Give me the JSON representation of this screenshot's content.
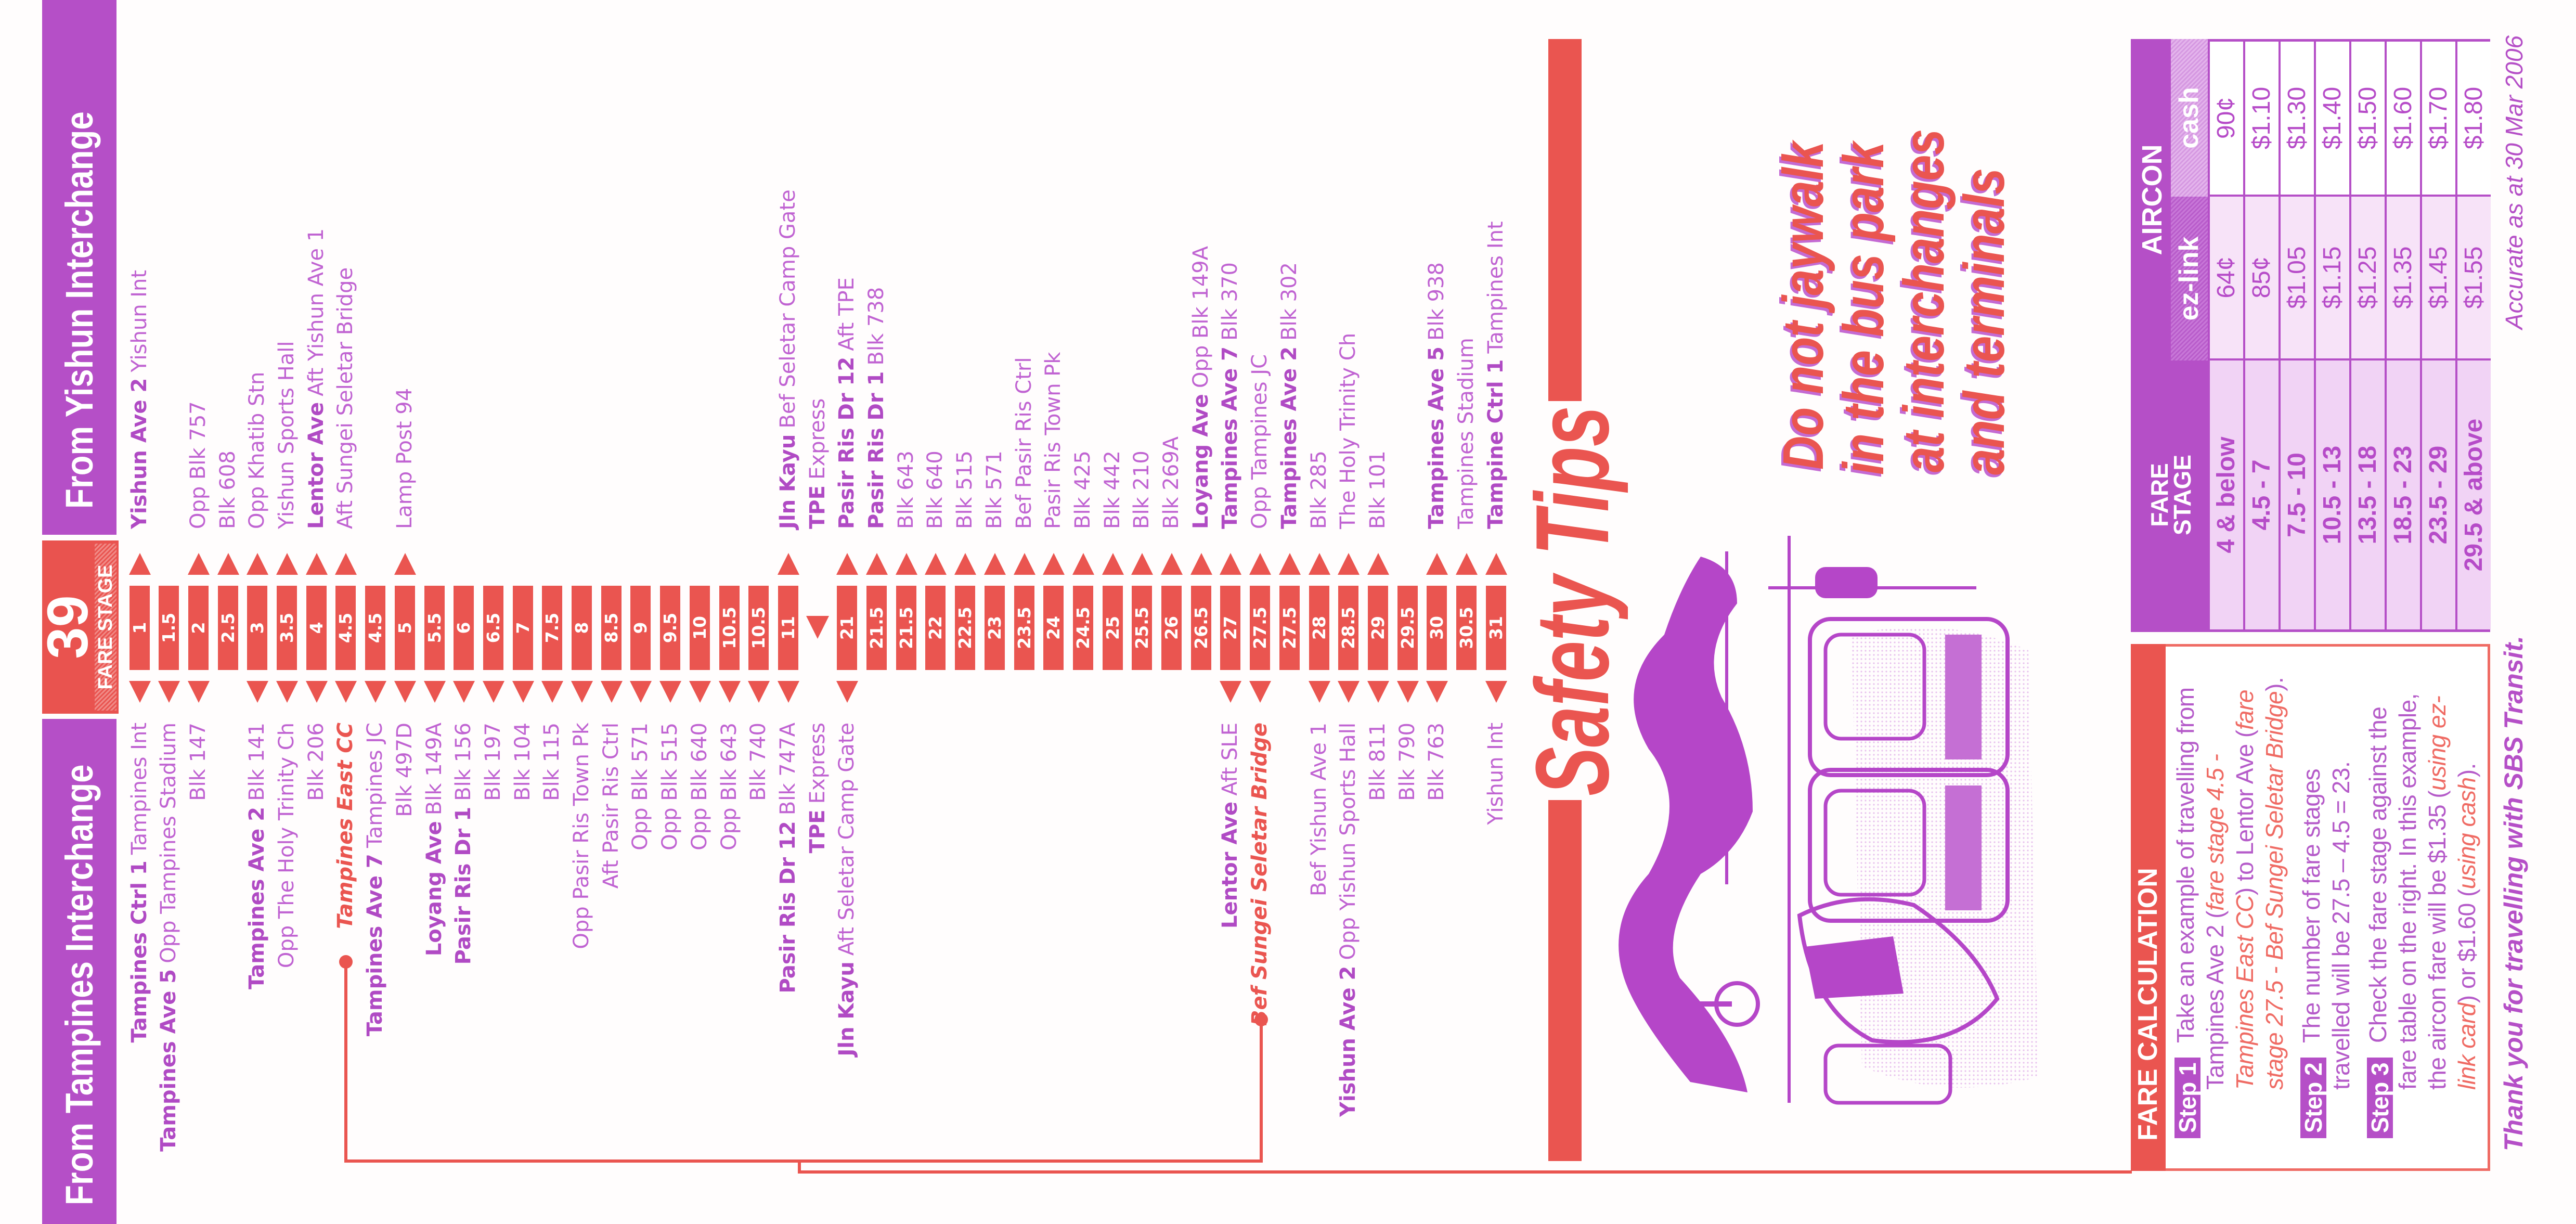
{
  "colors": {
    "red": "#ea5550",
    "purple": "#b54fc7",
    "label_purple": "#c063d2"
  },
  "header": {
    "from_tampines": "From Tampines Interchange",
    "route_number": "39",
    "fare_stage_label": "FARE STAGE",
    "from_yishun": "From Yishun Interchange"
  },
  "route": {
    "rows": [
      {
        "s": "1",
        "l": {
          "b": "Tampines Ctrl 1",
          "t": "Tampines Int"
        },
        "r": {
          "b": "Yishun Ave 2",
          "t": "Yishun Int"
        },
        "up": true,
        "dn": true
      },
      {
        "s": "1.5",
        "l": {
          "b": "Tampines Ave 5",
          "t": "Opp Tampines Stadium"
        },
        "up": false,
        "dn": true
      },
      {
        "s": "2",
        "l": {
          "t": "Blk 147"
        },
        "r": {
          "t": "Opp Blk 757"
        },
        "up": true,
        "dn": true
      },
      {
        "s": "2.5",
        "r": {
          "t": "Blk 608"
        },
        "up": true,
        "dn": false
      },
      {
        "s": "3",
        "l": {
          "b": "Tampines Ave 2",
          "t": "Blk 141"
        },
        "r": {
          "t": "Opp Khatib Stn"
        },
        "up": true,
        "dn": true
      },
      {
        "s": "3.5",
        "l": {
          "t": "Opp The Holy Trinity Ch"
        },
        "r": {
          "t": "Yishun Sports Hall"
        },
        "up": true,
        "dn": true
      },
      {
        "s": "4",
        "l": {
          "t": "Blk 206"
        },
        "r": {
          "b": "Lentor Ave",
          "t": "Aft Yishun Ave 1"
        },
        "up": true,
        "dn": true
      },
      {
        "s": "4.5",
        "l": {
          "t": "Tampines East CC",
          "hl": true
        },
        "r": {
          "t": "Aft Sungei Seletar Bridge"
        },
        "up": true,
        "dn": true
      },
      {
        "s": "4.5",
        "l": {
          "b": "Tampines Ave 7",
          "t": "Tampines JC"
        },
        "up": false,
        "dn": true
      },
      {
        "s": "5",
        "l": {
          "t": "Blk 497D"
        },
        "r": {
          "t": "Lamp Post 94"
        },
        "up": true,
        "dn": true
      },
      {
        "s": "5.5",
        "l": {
          "b": "Loyang Ave",
          "t": "Blk 149A"
        },
        "up": false,
        "dn": true
      },
      {
        "s": "6",
        "l": {
          "b": "Pasir Ris Dr 1",
          "t": "Blk 156"
        },
        "up": false,
        "dn": true
      },
      {
        "s": "6.5",
        "l": {
          "t": "Blk 197"
        },
        "up": false,
        "dn": true
      },
      {
        "s": "7",
        "l": {
          "t": "Blk 104"
        },
        "up": false,
        "dn": true
      },
      {
        "s": "7.5",
        "l": {
          "t": "Blk 115"
        },
        "up": false,
        "dn": true
      },
      {
        "s": "8",
        "l": {
          "t": "Opp Pasir Ris Town Pk"
        },
        "up": false,
        "dn": true
      },
      {
        "s": "8.5",
        "l": {
          "t": "Aft Pasir Ris Ctrl"
        },
        "up": false,
        "dn": true
      },
      {
        "s": "9",
        "l": {
          "t": "Opp Blk 571"
        },
        "up": false,
        "dn": true
      },
      {
        "s": "9.5",
        "l": {
          "t": "Opp Blk 515"
        },
        "up": false,
        "dn": true
      },
      {
        "s": "10",
        "l": {
          "t": "Opp Blk 640"
        },
        "up": false,
        "dn": true
      },
      {
        "s": "10.5",
        "l": {
          "t": "Opp Blk 643"
        },
        "up": false,
        "dn": true
      },
      {
        "s": "10.5",
        "l": {
          "t": "Blk 740"
        },
        "up": false,
        "dn": true
      },
      {
        "s": "11",
        "l": {
          "b": "Pasir Ris Dr 12",
          "t": "Blk 747A"
        },
        "r": {
          "b": "Jln Kayu",
          "t": "Bef Seletar Camp Gate"
        },
        "up": true,
        "dn": true
      },
      {
        "mid": true,
        "l": {
          "b": "TPE",
          "t": "Express"
        },
        "r": {
          "b": "TPE",
          "t": "Express"
        },
        "up": false,
        "dn": false
      },
      {
        "s": "21",
        "l": {
          "b": "Jln Kayu",
          "t": "Aft Seletar Camp Gate"
        },
        "r": {
          "b": "Pasir Ris Dr 12",
          "t": "Aft TPE"
        },
        "up": true,
        "dn": true
      },
      {
        "s": "21.5",
        "r": {
          "b": "Pasir Ris Dr 1",
          "t": "Blk 738"
        },
        "up": true,
        "dn": false
      },
      {
        "s": "21.5",
        "r": {
          "t": "Blk 643"
        },
        "up": true,
        "dn": false
      },
      {
        "s": "22",
        "r": {
          "t": "Blk 640"
        },
        "up": true,
        "dn": false
      },
      {
        "s": "22.5",
        "r": {
          "t": "Blk 515"
        },
        "up": true,
        "dn": false
      },
      {
        "s": "23",
        "r": {
          "t": "Blk 571"
        },
        "up": true,
        "dn": false
      },
      {
        "s": "23.5",
        "r": {
          "t": "Bef Pasir Ris Ctrl"
        },
        "up": true,
        "dn": false
      },
      {
        "s": "24",
        "r": {
          "t": "Pasir Ris Town Pk"
        },
        "up": true,
        "dn": false
      },
      {
        "s": "24.5",
        "r": {
          "t": "Blk 425"
        },
        "up": true,
        "dn": false
      },
      {
        "s": "25",
        "r": {
          "t": "Blk 442"
        },
        "up": true,
        "dn": false
      },
      {
        "s": "25.5",
        "r": {
          "t": "Blk 210"
        },
        "up": true,
        "dn": false
      },
      {
        "s": "26",
        "r": {
          "t": "Blk 269A"
        },
        "up": true,
        "dn": false
      },
      {
        "s": "26.5",
        "r": {
          "b": "Loyang Ave",
          "t": "Opp Blk 149A"
        },
        "up": true,
        "dn": false
      },
      {
        "s": "27",
        "l": {
          "b": "Lentor Ave",
          "t": "Aft SLE"
        },
        "r": {
          "b": "Tampines Ave 7",
          "t": "Blk 370"
        },
        "up": true,
        "dn": true
      },
      {
        "s": "27.5",
        "l": {
          "t": "Bef Sungei Seletar Bridge",
          "hl": true
        },
        "r": {
          "t": "Opp Tampines JC"
        },
        "up": true,
        "dn": true
      },
      {
        "s": "27.5",
        "r": {
          "b": "Tampines Ave 2",
          "t": "Blk 302"
        },
        "up": true,
        "dn": false
      },
      {
        "s": "28",
        "l": {
          "t": "Bef Yishun Ave 1"
        },
        "r": {
          "t": "Blk 285"
        },
        "up": true,
        "dn": true
      },
      {
        "s": "28.5",
        "l": {
          "b": "Yishun Ave 2",
          "t": "Opp Yishun Sports Hall"
        },
        "r": {
          "t": "The Holy Trinity Ch"
        },
        "up": true,
        "dn": true
      },
      {
        "s": "29",
        "l": {
          "t": "Blk 811"
        },
        "r": {
          "t": "Blk 101"
        },
        "up": true,
        "dn": true
      },
      {
        "s": "29.5",
        "l": {
          "t": "Blk 790"
        },
        "up": false,
        "dn": true
      },
      {
        "s": "30",
        "l": {
          "t": "Blk 763"
        },
        "r": {
          "b": "Tampines Ave 5",
          "t": "Blk 938"
        },
        "up": true,
        "dn": true
      },
      {
        "s": "30.5",
        "r": {
          "t": "Tampines Stadium"
        },
        "up": true,
        "dn": false
      },
      {
        "s": "31",
        "l": {
          "t": "Yishun Int"
        },
        "r": {
          "b": "Tampine Ctrl 1",
          "t": "Tampines Int"
        },
        "up": true,
        "dn": true
      }
    ]
  },
  "safety": {
    "title": "Safety Tips",
    "message": [
      "Do not jaywalk",
      "in the bus park",
      "at interchanges",
      "and terminals"
    ]
  },
  "fare_calculation": {
    "title": "FARE CALCULATION",
    "steps": [
      {
        "label": "Step 1",
        "lines": [
          [
            {
              "t": "Take an example of travelling from"
            }
          ],
          [
            {
              "t": "Tampines Ave 2 ("
            },
            {
              "t": "fare stage 4.5 -",
              "em": true
            }
          ],
          [
            {
              "t": "Tampines East CC",
              "em": true
            },
            {
              "t": ") to Lentor Ave ("
            },
            {
              "t": "fare",
              "em": true
            }
          ],
          [
            {
              "t": "stage 27.5 - Bef Sungei Seletar Bridge",
              "em": true
            },
            {
              "t": ")."
            }
          ]
        ]
      },
      {
        "label": "Step 2",
        "lines": [
          [
            {
              "t": "The number of fare stages"
            }
          ],
          [
            {
              "t": "travelled will be 27.5 – 4.5 = 23."
            }
          ]
        ]
      },
      {
        "label": "Step 3",
        "lines": [
          [
            {
              "t": "Check the fare stage against the"
            }
          ],
          [
            {
              "t": "fare table on the right. In this example,"
            }
          ],
          [
            {
              "t": "the aircon fare will be $1.35 ("
            },
            {
              "t": "using ez-",
              "em": true
            }
          ],
          [
            {
              "t": "link card",
              "em": true
            },
            {
              "t": ") or $1.60 ("
            },
            {
              "t": "using cash",
              "em": true
            },
            {
              "t": ")."
            }
          ]
        ]
      }
    ]
  },
  "fare_table": {
    "fare_stage_header": [
      "FARE",
      "STAGE"
    ],
    "aircon": "AIRCON",
    "ezlink": "ez-link",
    "cash": "cash",
    "rows": [
      {
        "stage": "4 & below",
        "ezlink": "64¢",
        "cash": "90¢"
      },
      {
        "stage": "4.5 - 7",
        "ezlink": "85¢",
        "cash": "$1.10"
      },
      {
        "stage": "7.5 - 10",
        "ezlink": "$1.05",
        "cash": "$1.30"
      },
      {
        "stage": "10.5 - 13",
        "ezlink": "$1.15",
        "cash": "$1.40"
      },
      {
        "stage": "13.5 - 18",
        "ezlink": "$1.25",
        "cash": "$1.50"
      },
      {
        "stage": "18.5 - 23",
        "ezlink": "$1.35",
        "cash": "$1.60"
      },
      {
        "stage": "23.5 - 29",
        "ezlink": "$1.45",
        "cash": "$1.70"
      },
      {
        "stage": "29.5 & above",
        "ezlink": "$1.55",
        "cash": "$1.80"
      }
    ]
  },
  "accurate_as_at": "Accurate as at 30 Mar 2006",
  "thank_you": "Thank you for travelling with SBS Transit."
}
